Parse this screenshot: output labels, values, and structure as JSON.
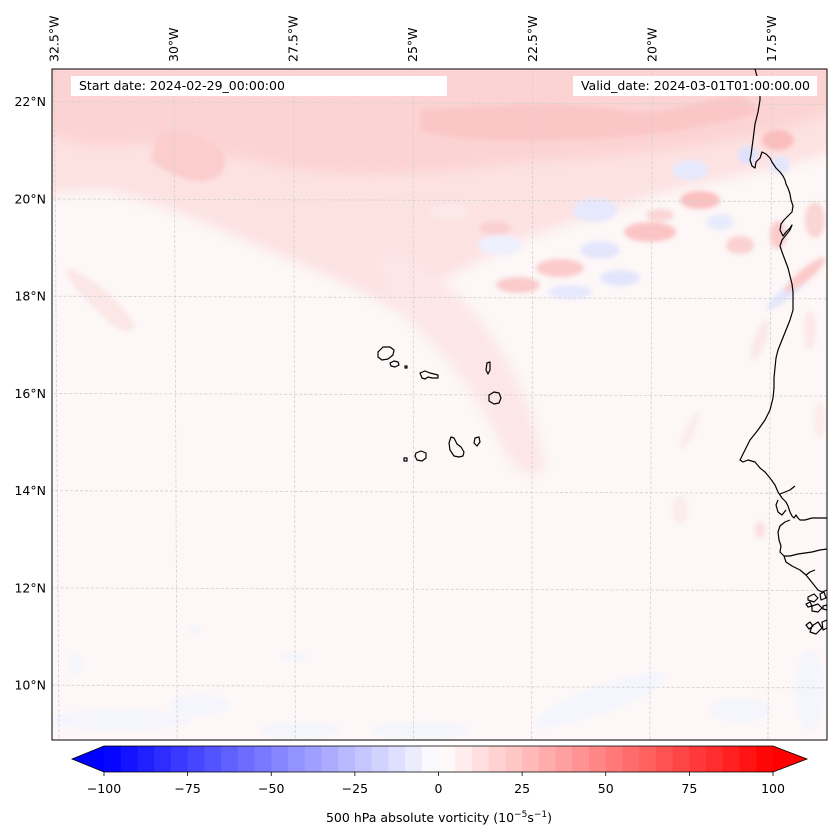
{
  "figure": {
    "start_date_label": "Start date: 2024-02-29_00:00:00",
    "valid_date_label": "Valid_date: 2024-03-01T01:00:00.00"
  },
  "map": {
    "lon_ticks": [
      "32.5°W",
      "30°W",
      "27.5°W",
      "25°W",
      "22.5°W",
      "20°W",
      "17.5°W"
    ],
    "lon_values": [
      -32.5,
      -30,
      -27.5,
      -25,
      -22.5,
      -20,
      -17.5
    ],
    "lat_ticks": [
      "22°N",
      "20°N",
      "18°N",
      "16°N",
      "14°N",
      "12°N",
      "10°N"
    ],
    "lat_values": [
      22,
      20,
      18,
      16,
      14,
      12,
      10
    ],
    "extent": {
      "lon_min": -32.6,
      "lon_max": -16.3,
      "lat_min": 8.9,
      "lat_max": 22.7
    },
    "field": "500 hPa absolute vorticity",
    "background_color": "#fdf6f6",
    "coastline_color": "#000000",
    "gridline_color": "#cfcfcf"
  },
  "colorbar": {
    "label_main": "500 hPa absolute vorticity (10",
    "label_exp1": "−5",
    "label_mid": "s",
    "label_exp2": "−1",
    "label_end": ")",
    "ticks": [
      "−100",
      "−75",
      "−50",
      "−25",
      "0",
      "25",
      "50",
      "75",
      "100"
    ],
    "tick_values": [
      -100,
      -75,
      -50,
      -25,
      0,
      25,
      50,
      75,
      100
    ],
    "vmin": -100,
    "vmax": 100,
    "step": 5,
    "extend": "both",
    "cmap": "bwr",
    "min_color": "#0000ff",
    "mid_color": "#ffffff",
    "max_color": "#ff0000"
  },
  "chart_data": {
    "type": "heatmap",
    "title": "",
    "annotations": [
      "Start date: 2024-02-29_00:00:00",
      "Valid_date: 2024-03-01T01:00:00.00"
    ],
    "xlabel": "",
    "ylabel": "",
    "x_tick_labels": [
      "32.5°W",
      "30°W",
      "27.5°W",
      "25°W",
      "22.5°W",
      "20°W",
      "17.5°W"
    ],
    "y_tick_labels": [
      "22°N",
      "20°N",
      "18°N",
      "16°N",
      "14°N",
      "12°N",
      "10°N"
    ],
    "xlim": [
      -32.6,
      -16.3
    ],
    "ylim": [
      8.9,
      22.7
    ],
    "colorbar_range": [
      -100,
      100
    ],
    "colorbar_label": "500 hPa absolute vorticity (10^-5 s^-1)",
    "features": [
      {
        "name": "northern positive band",
        "lat_range": [
          19,
          22.7
        ],
        "lon_range": [
          -32.6,
          -16.3
        ],
        "approx_value": 15
      },
      {
        "name": "diagonal positive plume",
        "from": [
          -25,
          19
        ],
        "to": [
          -21,
          14
        ],
        "approx_value": 8
      },
      {
        "name": "wave train off Mauritania",
        "lat_range": [
          17.5,
          21
        ],
        "lon_range": [
          -23,
          -16.3
        ],
        "approx_value_range": [
          -15,
          25
        ]
      },
      {
        "name": "background tropics",
        "lat_range": [
          8.9,
          14
        ],
        "approx_value": 2
      },
      {
        "name": "weak negative patches near southern edge",
        "lat_range": [
          8.9,
          10
        ],
        "approx_value": -3
      }
    ]
  }
}
